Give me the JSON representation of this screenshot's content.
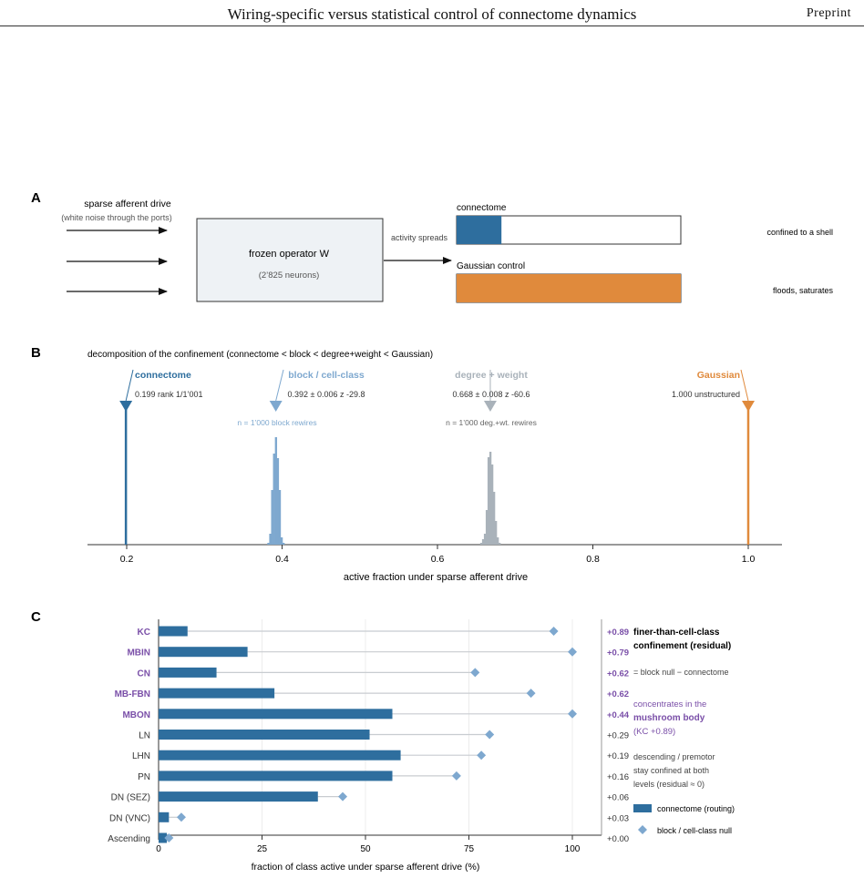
{
  "header": {
    "title": "Wiring-specific versus statistical control of connectome dynamics",
    "preprint": "Preprint"
  },
  "panelA": {
    "label": "A",
    "drive_title": "sparse afferent drive",
    "drive_sub": "(white noise through the ports)",
    "operator_title": "frozen operator W",
    "operator_sub": "(2’825 neurons)",
    "spreads": "activity spreads",
    "bars": [
      {
        "label": "connectome",
        "fill": 0.2,
        "color": "#2e6e9e",
        "note": "confined to a shell"
      },
      {
        "label": "Gaussian control",
        "fill": 1.0,
        "color": "#e08a3c",
        "note": "floods, saturates"
      }
    ]
  },
  "panelB": {
    "label": "B",
    "title": "decomposition of the confinement (connectome < block < degree+weight < Gaussian)",
    "xlabel": "active fraction under sparse afferent drive",
    "ticks": [
      "0.2",
      "0.4",
      "0.6",
      "0.8",
      "1.0"
    ],
    "markers": [
      {
        "name": "connectome",
        "value": 0.199,
        "stat": "0.199 rank 1/1’001",
        "color": "#2e6e9e",
        "null_note": ""
      },
      {
        "name": "block / cell-class",
        "value": 0.392,
        "stat": "0.392 ± 0.006 z -29.8",
        "color": "#7ea8cf",
        "null_note": "n = 1’000 block rewires"
      },
      {
        "name": "degree + weight",
        "value": 0.668,
        "stat": "0.668 ± 0.008 z -60.6",
        "color": "#a9b2ba",
        "null_note": "n = 1’000 deg.+wt. rewires"
      },
      {
        "name": "Gaussian",
        "value": 1.0,
        "stat": "1.000 unstructured",
        "color": "#e08a3c",
        "null_note": ""
      }
    ]
  },
  "chart_data": {
    "type": "bar",
    "categories": [
      "KC",
      "MBIN",
      "CN",
      "MB-FBN",
      "MBON",
      "LN",
      "LHN",
      "PN",
      "DN (SEZ)",
      "DN (VNC)",
      "Ascending"
    ],
    "highlight": [
      true,
      true,
      true,
      true,
      true,
      false,
      false,
      false,
      false,
      false,
      false
    ],
    "series": [
      {
        "name": "connectome (routing)",
        "values": [
          7,
          21.5,
          14,
          28,
          56.5,
          51,
          58.5,
          56.5,
          38.5,
          2.5,
          2
        ],
        "color": "#2e6e9e"
      },
      {
        "name": "block / cell-class null",
        "values": [
          95.5,
          100,
          76.5,
          90,
          100,
          80,
          78,
          72,
          44.5,
          5.5,
          2.5
        ],
        "color": "#7ea8cf"
      }
    ],
    "residuals": [
      "+0.89",
      "+0.79",
      "+0.62",
      "+0.62",
      "+0.44",
      "+0.29",
      "+0.19",
      "+0.16",
      "+0.06",
      "+0.03",
      "+0.00"
    ],
    "xlabel": "fraction of class active under sparse afferent drive (%)",
    "xticks": [
      "0",
      "25",
      "50",
      "75",
      "100"
    ],
    "xlim": [
      0,
      100
    ],
    "grid": true
  },
  "panelC": {
    "label": "C",
    "side": {
      "title1": "finer-than-cell-class",
      "title2": "confinement (residual)",
      "formula": "= block null − connectome",
      "mb1": "concentrates in the",
      "mb2": "mushroom body",
      "mb3": "(KC +0.89)",
      "dn1": "descending / premotor",
      "dn2": "stay confined at both",
      "dn3": "levels (residual ≈ 0)"
    },
    "colors": {
      "highlight": "#7a4fa8",
      "normal": "#333333"
    }
  }
}
